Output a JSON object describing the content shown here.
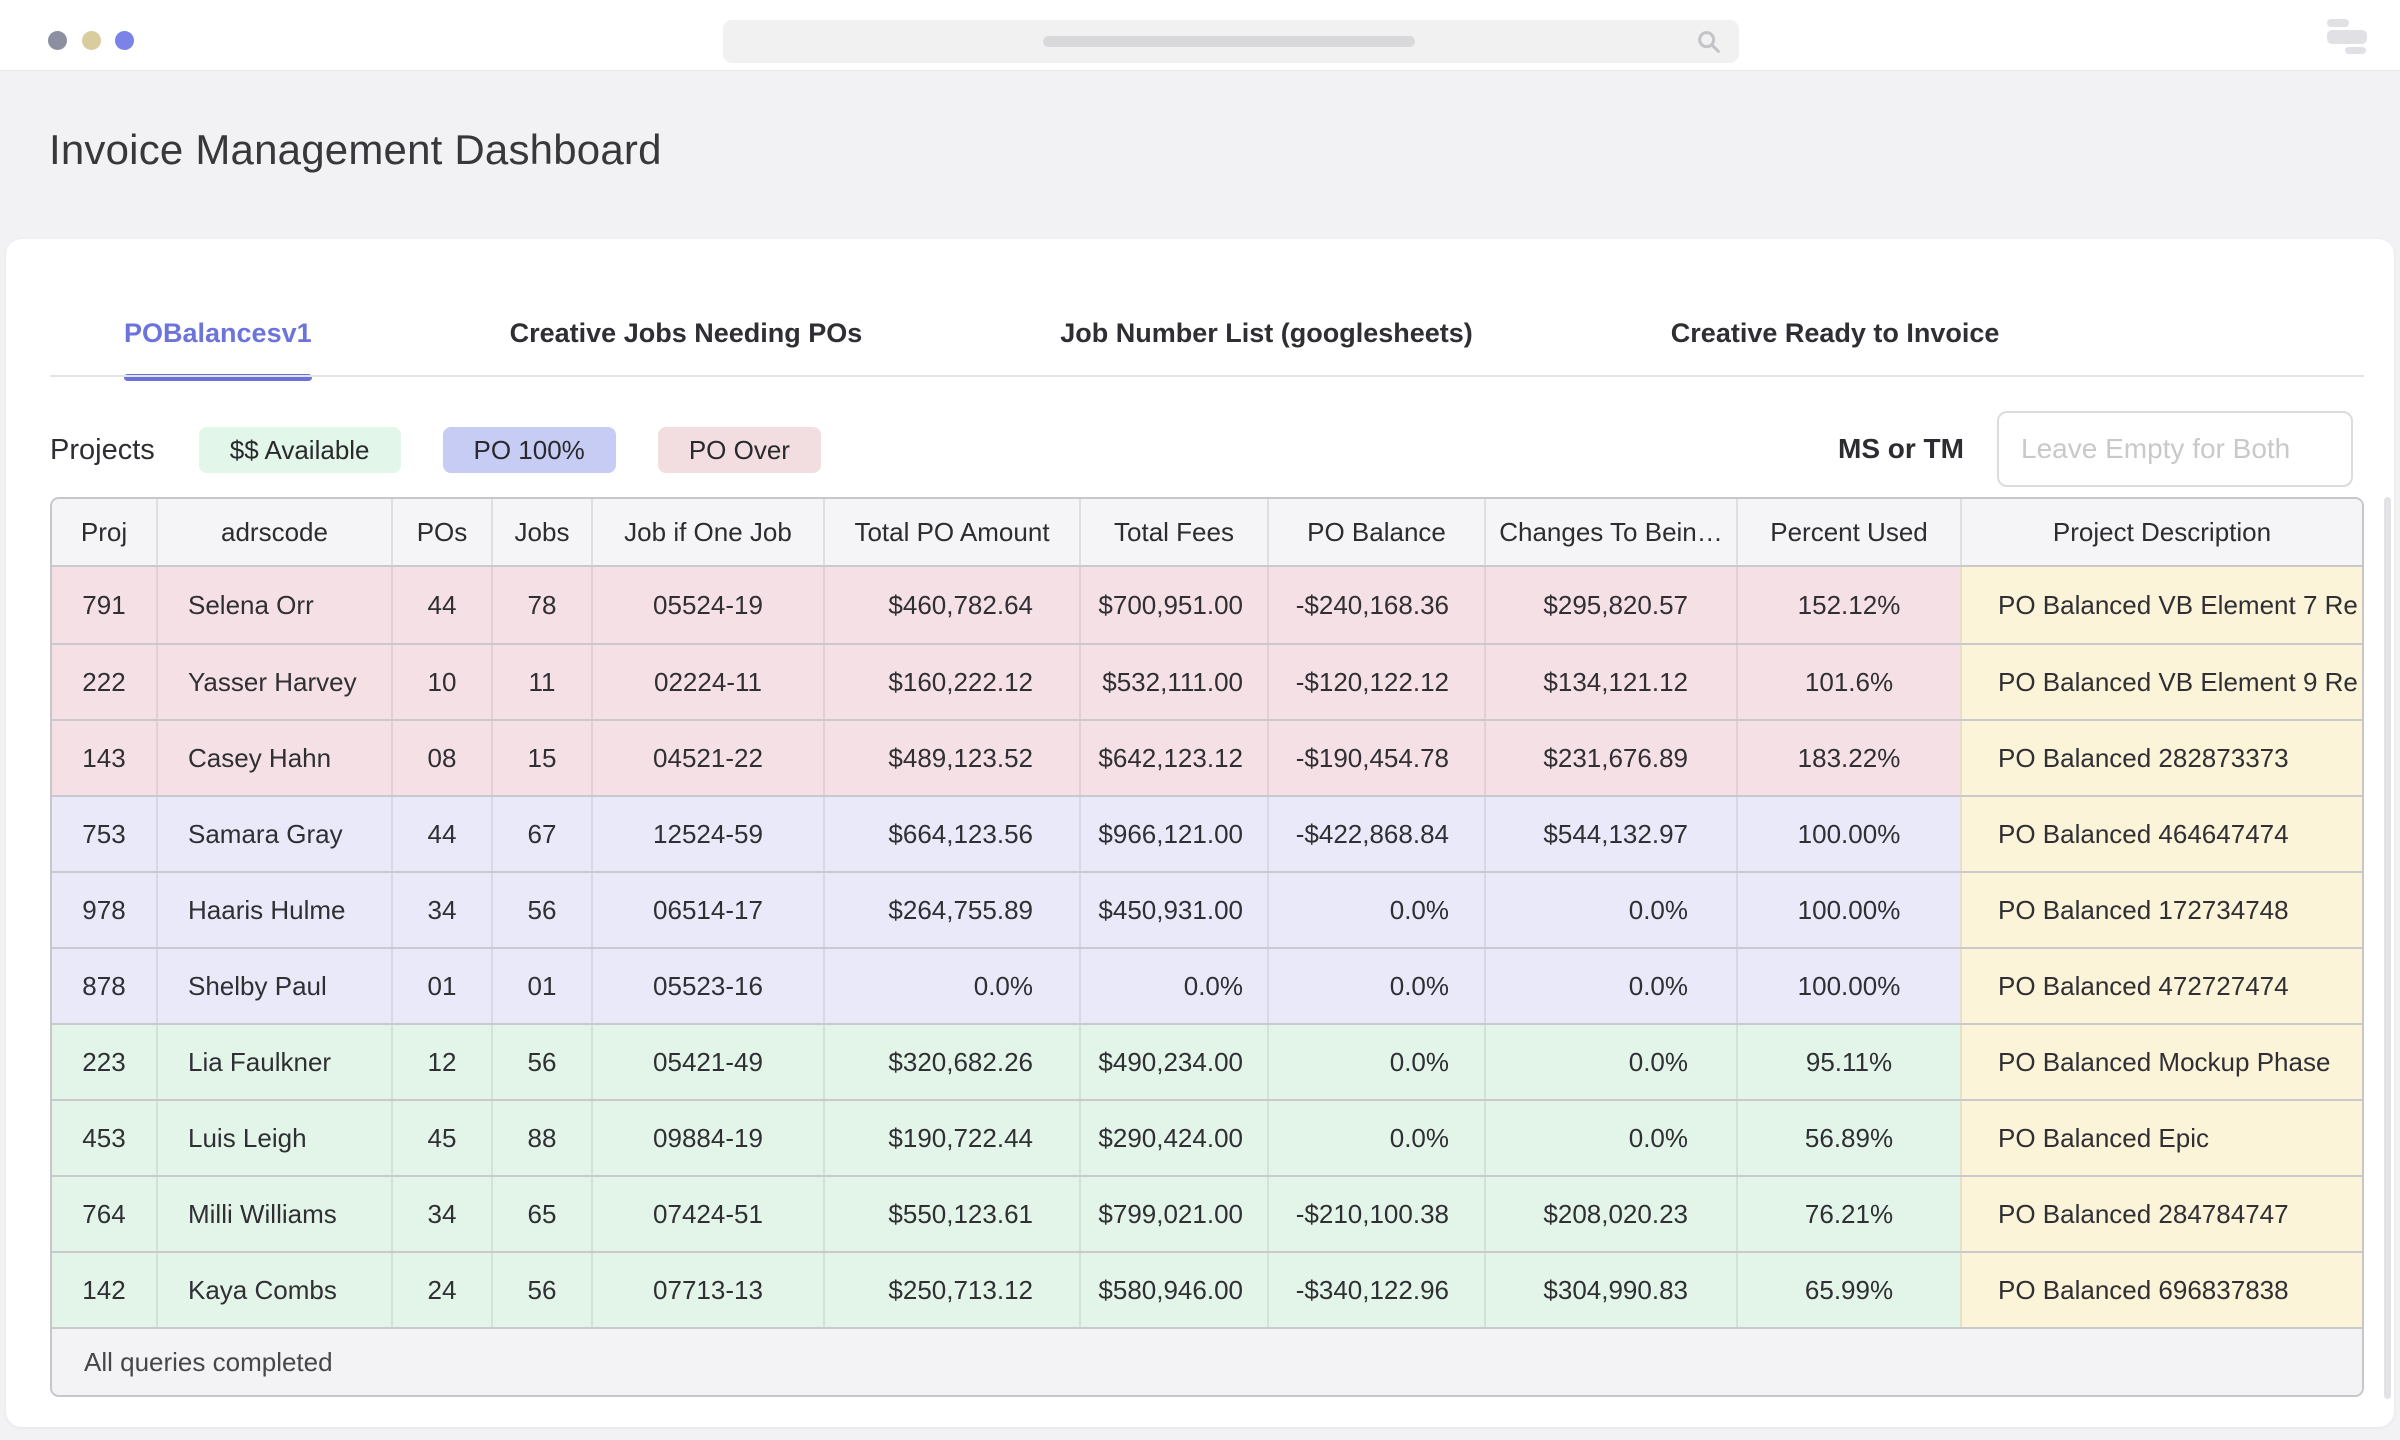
{
  "header": {
    "title": "Invoice Management Dashboard"
  },
  "window": {
    "traffic_lights": [
      {
        "name": "gray",
        "color": "#8b8fa0"
      },
      {
        "name": "tan",
        "color": "#d9cc9e"
      },
      {
        "name": "indigo",
        "color": "#7b82e8"
      }
    ]
  },
  "icons": {
    "search": "magnifier",
    "window_menu": "stacked-bars",
    "truncation_glyph": "⋯"
  },
  "tabs": [
    {
      "label": "POBalancesv1",
      "active": true
    },
    {
      "label": "Creative Jobs Needing POs",
      "active": false
    },
    {
      "label": "Job Number List (googlesheets)",
      "active": false
    },
    {
      "label": "Creative Ready to Invoice",
      "active": false
    }
  ],
  "filters": {
    "section_label": "Projects",
    "chips": [
      {
        "label": "$$ Available",
        "bg": "#e2f7e9"
      },
      {
        "label": "PO 100%",
        "bg": "#c7ccf4"
      },
      {
        "label": "PO Over",
        "bg": "#f2dee0"
      }
    ],
    "ms_or_tm_label": "MS or TM",
    "input_value": "",
    "input_placeholder": "Leave Empty for Both"
  },
  "colors": {
    "accent": "#6b73d8",
    "desc_bg": "#fbf4d9",
    "status": {
      "po_over": "#f5e1e5",
      "po_100": "#e9e9f9",
      "available": "#e3f5e9"
    }
  },
  "table": {
    "columns": [
      {
        "label": "Proj"
      },
      {
        "label": "adrscode"
      },
      {
        "label": "POs"
      },
      {
        "label": "Jobs"
      },
      {
        "label": "Job if One Job"
      },
      {
        "label": "Total PO Amount"
      },
      {
        "label": "Total Fees"
      },
      {
        "label": "PO Balance"
      },
      {
        "label": "Changes To Bein…"
      },
      {
        "label": "Percent Used"
      },
      {
        "label": "Project Description"
      }
    ],
    "rows": [
      {
        "status": "po_over",
        "truncated": true,
        "cells": [
          "791",
          "Selena Orr",
          "44",
          "78",
          "05524-19",
          "$460,782.64",
          "$700,951.00",
          "-$240,168.36",
          "$295,820.57",
          "152.12%",
          "PO Balanced VB Element 7 Re"
        ]
      },
      {
        "status": "po_over",
        "truncated": true,
        "cells": [
          "222",
          "Yasser Harvey",
          "10",
          "11",
          "02224-11",
          "$160,222.12",
          "$532,111.00",
          "-$120,122.12",
          "$134,121.12",
          "101.6%",
          "PO Balanced VB Element 9 Re"
        ]
      },
      {
        "status": "po_over",
        "truncated": false,
        "cells": [
          "143",
          "Casey Hahn",
          "08",
          "15",
          "04521-22",
          "$489,123.52",
          "$642,123.12",
          "-$190,454.78",
          "$231,676.89",
          "183.22%",
          "PO Balanced 282873373"
        ]
      },
      {
        "status": "po_100",
        "truncated": false,
        "cells": [
          "753",
          "Samara Gray",
          "44",
          "67",
          "12524-59",
          "$664,123.56",
          "$966,121.00",
          "-$422,868.84",
          "$544,132.97",
          "100.00%",
          "PO Balanced 464647474"
        ]
      },
      {
        "status": "po_100",
        "truncated": false,
        "cells": [
          "978",
          "Haaris Hulme",
          "34",
          "56",
          "06514-17",
          "$264,755.89",
          "$450,931.00",
          "0.0%",
          "0.0%",
          "100.00%",
          "PO Balanced 172734748"
        ]
      },
      {
        "status": "po_100",
        "truncated": false,
        "cells": [
          "878",
          "Shelby Paul",
          "01",
          "01",
          "05523-16",
          "0.0%",
          "0.0%",
          "0.0%",
          "0.0%",
          "100.00%",
          "PO Balanced 472727474"
        ]
      },
      {
        "status": "available",
        "truncated": false,
        "cells": [
          "223",
          "Lia Faulkner",
          "12",
          "56",
          "05421-49",
          "$320,682.26",
          "$490,234.00",
          "0.0%",
          "0.0%",
          "95.11%",
          "PO Balanced Mockup Phase"
        ]
      },
      {
        "status": "available",
        "truncated": false,
        "cells": [
          "453",
          "Luis Leigh",
          "45",
          "88",
          "09884-19",
          "$190,722.44",
          "$290,424.00",
          "0.0%",
          "0.0%",
          "56.89%",
          "PO Balanced Epic"
        ]
      },
      {
        "status": "available",
        "truncated": false,
        "cells": [
          "764",
          "Milli Williams",
          "34",
          "65",
          "07424-51",
          "$550,123.61",
          "$799,021.00",
          "-$210,100.38",
          "$208,020.23",
          "76.21%",
          "PO Balanced 284784747"
        ]
      },
      {
        "status": "available",
        "truncated": false,
        "cells": [
          "142",
          "Kaya Combs",
          "24",
          "56",
          "07713-13",
          "$250,713.12",
          "$580,946.00",
          "-$340,122.96",
          "$304,990.83",
          "65.99%",
          "PO Balanced 696837838"
        ]
      }
    ],
    "footer_status": "All queries completed"
  }
}
